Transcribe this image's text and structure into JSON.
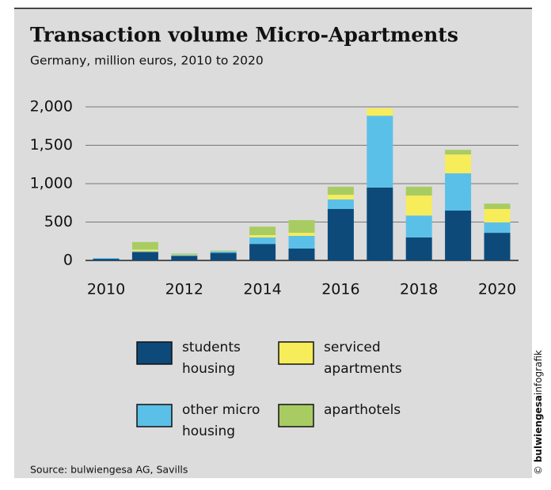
{
  "chart_data": {
    "type": "stacked_bar",
    "title": "Transaction volume Micro-Apartments",
    "subtitle": "Germany, million euros, 2010 to 2020",
    "categories": [
      "2010",
      null,
      "2012",
      null,
      "2014",
      null,
      "2016",
      null,
      "2018",
      null,
      "2020"
    ],
    "series": [
      {
        "name": "students housing",
        "color": "#0d4a7a",
        "values": [
          20,
          110,
          60,
          100,
          215,
          155,
          670,
          950,
          300,
          650,
          360
        ]
      },
      {
        "name": "other micro housing",
        "color": "#5bc0e8",
        "values": [
          10,
          10,
          10,
          20,
          85,
          165,
          125,
          935,
          285,
          485,
          135
        ]
      },
      {
        "name": "serviced apartments",
        "color": "#f7ec5a",
        "values": [
          0,
          20,
          5,
          5,
          30,
          40,
          60,
          95,
          260,
          245,
          175
        ]
      },
      {
        "name": "aparthotels",
        "color": "#a8cc62",
        "values": [
          0,
          100,
          15,
          5,
          110,
          165,
          105,
          0,
          115,
          60,
          70
        ]
      }
    ],
    "ylim": [
      0,
      2000
    ],
    "yticks": [
      0,
      500,
      {
        "value": 1000,
        "label": "1,000"
      },
      {
        "value": 1500,
        "label": "1,500"
      },
      {
        "value": 2000,
        "label": "2,000"
      }
    ],
    "grid": true,
    "source": "Source: bulwiengesa AG, Savills",
    "credit": {
      "symbol": "©",
      "brand": "bulwiengesa",
      "suffix": "infografik"
    }
  }
}
